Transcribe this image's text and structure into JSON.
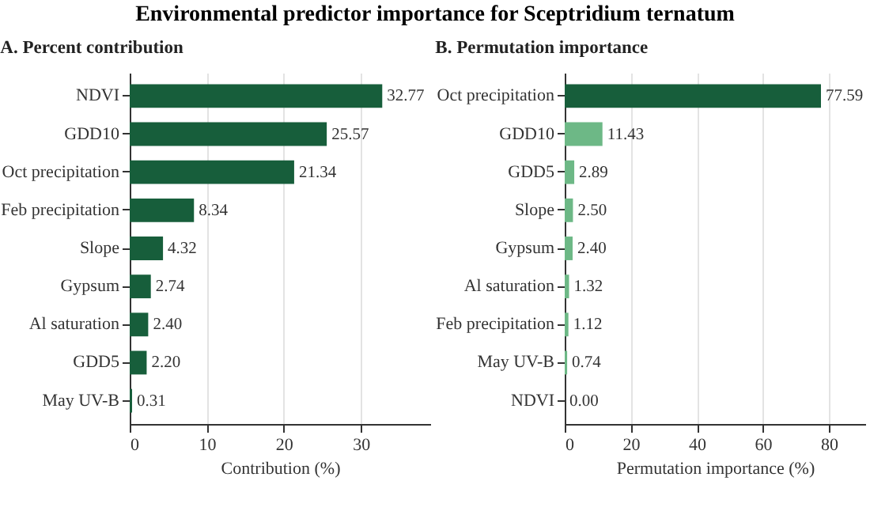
{
  "chart_data": [
    {
      "type": "other",
      "title": "Environmental predictor importance for Sceptridium ternatum"
    },
    {
      "type": "bar",
      "orientation": "horizontal",
      "title": "A. Percent contribution",
      "xlabel": "Contribution (%)",
      "categories": [
        "NDVI",
        "GDD10",
        "Oct precipitation",
        "Feb precipitation",
        "Slope",
        "Gypsum",
        "Al saturation",
        "GDD5",
        "May UV-B"
      ],
      "values": [
        32.77,
        25.57,
        21.34,
        8.34,
        4.32,
        2.74,
        2.4,
        2.2,
        0.31
      ],
      "value_labels": [
        "32.77",
        "25.57",
        "21.34",
        "8.34",
        "4.32",
        "2.74",
        "2.40",
        "2.20",
        "0.31"
      ],
      "colors": [
        "#175e3b",
        "#175e3b",
        "#175e3b",
        "#175e3b",
        "#175e3b",
        "#175e3b",
        "#175e3b",
        "#175e3b",
        "#175e3b"
      ],
      "xlim": [
        0,
        39
      ],
      "xticks": [
        0,
        10,
        20,
        30
      ],
      "grid": "x",
      "legend": false
    },
    {
      "type": "bar",
      "orientation": "horizontal",
      "title": "B. Permutation importance",
      "xlabel": "Permutation importance (%)",
      "categories": [
        "Oct precipitation",
        "GDD10",
        "GDD5",
        "Slope",
        "Gypsum",
        "Al saturation",
        "Feb precipitation",
        "May UV-B",
        "NDVI"
      ],
      "values": [
        77.59,
        11.43,
        2.89,
        2.5,
        2.4,
        1.32,
        1.12,
        0.74,
        0.0
      ],
      "value_labels": [
        "77.59",
        "11.43",
        "2.89",
        "2.50",
        "2.40",
        "1.32",
        "1.12",
        "0.74",
        "0.00"
      ],
      "colors": [
        "#175e3b",
        "#6db886",
        "#6db886",
        "#6db886",
        "#6db886",
        "#6db886",
        "#6db886",
        "#6db886",
        "#6db886"
      ],
      "xlim": [
        0,
        91
      ],
      "xticks": [
        0,
        20,
        40,
        60,
        80
      ],
      "grid": "x",
      "legend": false
    }
  ]
}
